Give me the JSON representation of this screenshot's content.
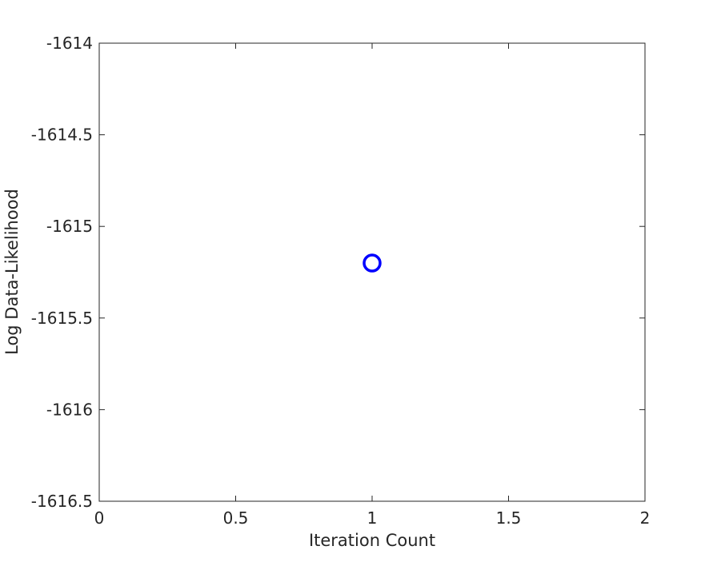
{
  "chart_data": {
    "type": "scatter",
    "title": "",
    "xlabel": "Iteration Count",
    "ylabel": "Log Data-Likelihood",
    "xlim": [
      0,
      2
    ],
    "ylim": [
      -1616.5,
      -1614
    ],
    "x_ticks": [
      0,
      0.5,
      1,
      1.5,
      2
    ],
    "x_tick_labels": [
      "0",
      "0.5",
      "1",
      "1.5",
      "2"
    ],
    "y_ticks": [
      -1614,
      -1614.5,
      -1615,
      -1615.5,
      -1616,
      -1616.5
    ],
    "y_tick_labels": [
      "-1614",
      "-1614.5",
      "-1615",
      "-1615.5",
      "-1616",
      "-1616.5"
    ],
    "grid": false,
    "legend": "none",
    "series": [
      {
        "marker": "circle",
        "color": "#0000ff",
        "x": [
          1
        ],
        "y": [
          -1615.2
        ]
      }
    ]
  }
}
